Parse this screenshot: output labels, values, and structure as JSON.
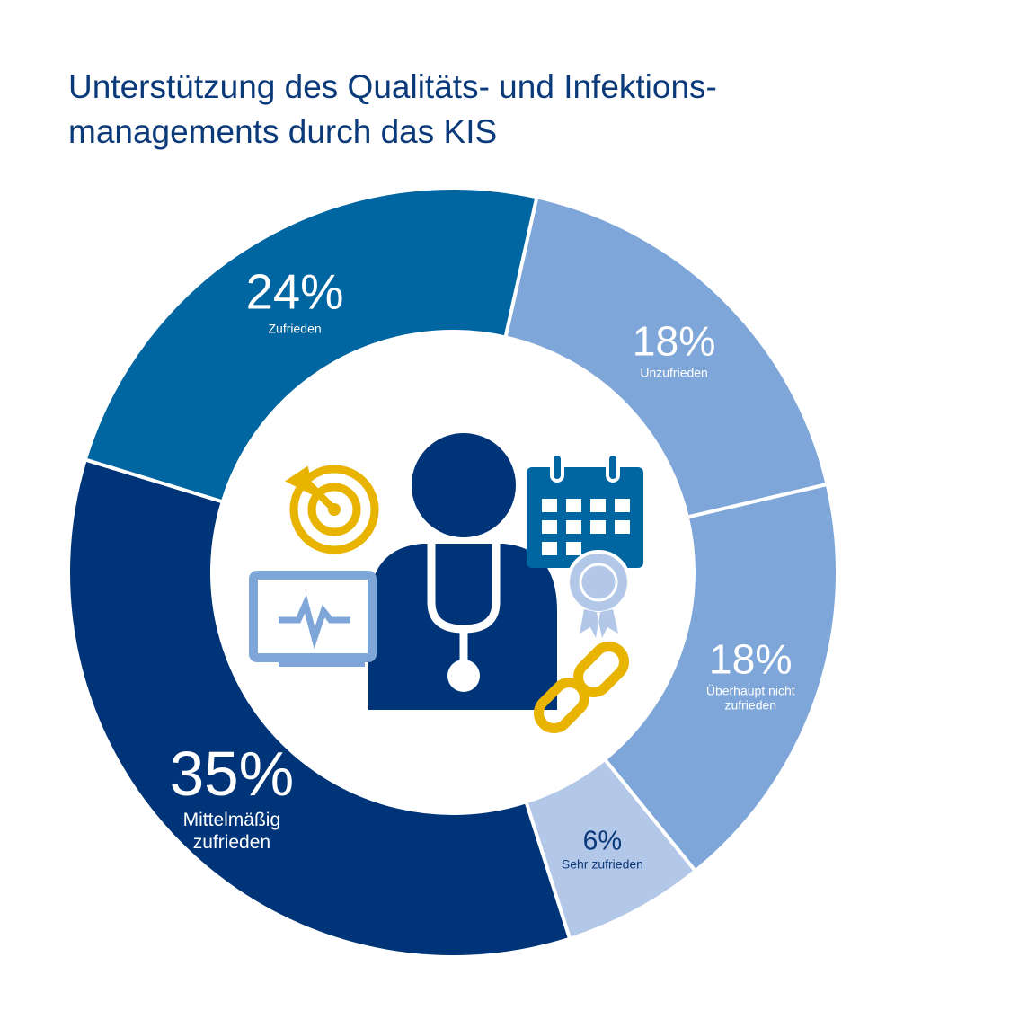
{
  "chart_data": {
    "type": "donut",
    "title": [
      "Unterstützung des Qualitäts- und Infektions-",
      "managements durch das KIS"
    ],
    "categories": [
      "Unzufrieden",
      "Überhaupt nicht zufrieden",
      "Sehr zufrieden",
      "Mittelmäßig zufrieden",
      "Zufrieden"
    ],
    "values": [
      18,
      18,
      6,
      35,
      24
    ],
    "value_labels": [
      "18%",
      "18%",
      "6%",
      "35%",
      "24%"
    ],
    "colors": [
      "#7fa6d8",
      "#7fa6d8",
      "#b3c8e8",
      "#003478",
      "#0066a1"
    ],
    "label_colors": [
      "#ffffff",
      "#ffffff",
      "#0b3a7a",
      "#ffffff",
      "#ffffff"
    ]
  }
}
